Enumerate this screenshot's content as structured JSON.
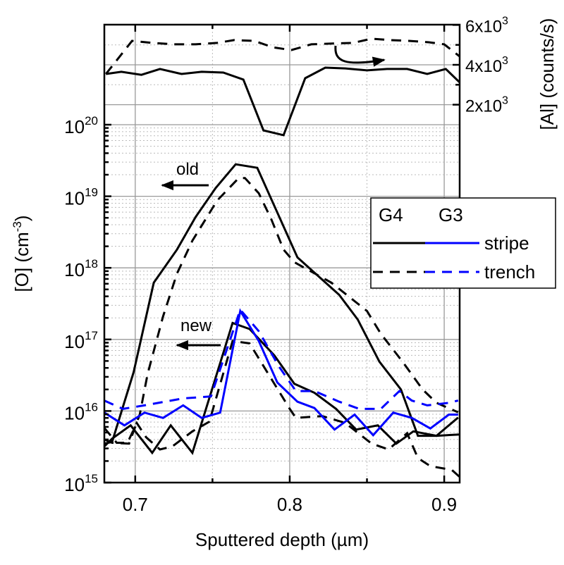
{
  "chart_data": {
    "type": "line",
    "xlabel": "Sputtered depth (µm)",
    "ylabel": {
      "main": "[O] (cm",
      "sup": "-3",
      "end": ")"
    },
    "y2label": "[Al] (counts/s)",
    "xlim": [
      0.68,
      0.91
    ],
    "ylim": [
      1000000000000000.0,
      2.5e+21
    ],
    "yscale": "log",
    "y2lim": [
      -17000,
      6000
    ],
    "grid": true,
    "x_ticks": [
      {
        "value": 0.7,
        "label": "0.7"
      },
      {
        "value": 0.8,
        "label": "0.8"
      },
      {
        "value": 0.9,
        "label": "0.9"
      }
    ],
    "y_ticks": [
      {
        "value": 1000000000000000.0,
        "base": "10",
        "exp": "15"
      },
      {
        "value": 1e+16,
        "base": "10",
        "exp": "16"
      },
      {
        "value": 1e+17,
        "base": "10",
        "exp": "17"
      },
      {
        "value": 1e+18,
        "base": "10",
        "exp": "18"
      },
      {
        "value": 1e+19,
        "base": "10",
        "exp": "19"
      },
      {
        "value": 1e+20,
        "base": "10",
        "exp": "20"
      }
    ],
    "y2_ticks": [
      {
        "value": 2000,
        "base": "2x10",
        "exp": "3"
      },
      {
        "value": 4000,
        "base": "4x10",
        "exp": "3"
      },
      {
        "value": 6000,
        "base": "6x10",
        "exp": "3"
      }
    ],
    "legend": {
      "placement": "right",
      "headers": [
        "G4",
        "G3"
      ],
      "entries": [
        {
          "label": "stripe",
          "dash": false
        },
        {
          "label": "trench",
          "dash": true
        }
      ],
      "colors": [
        "#000000",
        "#0000ff"
      ]
    },
    "annotations": [
      {
        "text": "old",
        "arrow": "left"
      },
      {
        "text": "new",
        "arrow": "left"
      }
    ],
    "series": [
      {
        "name": "O G4 stripe (old)",
        "axis": "left",
        "color": "#000000",
        "dash": false,
        "x": [
          0.68,
          0.685,
          0.699,
          0.712,
          0.727,
          0.739,
          0.752,
          0.765,
          0.779,
          0.805,
          0.832,
          0.844,
          0.858,
          0.872,
          0.883,
          0.895,
          0.91
        ],
        "y": [
          3500000000000000.0,
          3700000000000000.0,
          3.5e+16,
          6.2e+17,
          1.8e+18,
          5.1e+18,
          1.3e+19,
          2.8e+19,
          2.5e+19,
          1.4e+18,
          4.2e+17,
          1.9e+17,
          4.9e+16,
          2e+16,
          4500000000000000.0,
          4500000000000000.0,
          4700000000000000.0
        ]
      },
      {
        "name": "O G4 trench (old)",
        "axis": "left",
        "color": "#000000",
        "dash": true,
        "x": [
          0.68,
          0.685,
          0.696,
          0.703,
          0.708,
          0.718,
          0.727,
          0.737,
          0.753,
          0.767,
          0.771,
          0.78,
          0.788,
          0.796,
          0.803,
          0.827,
          0.85,
          0.859,
          0.873,
          0.886,
          0.895,
          0.909
        ],
        "y": [
          4000000000000000.0,
          3600000000000000.0,
          3500000000000000.0,
          9100000000000000.0,
          3.3e+16,
          2.1e+17,
          8.3e+17,
          2.4e+18,
          8.7e+18,
          1.8e+19,
          1.8e+19,
          1.1e+19,
          4.8e+18,
          1.8e+18,
          1.2e+18,
          6.2e+17,
          2.5e+17,
          1.2e+17,
          4.9e+16,
          2e+16,
          1.3e+16,
          9600000000000000.0
        ]
      },
      {
        "name": "O G4 stripe (new)",
        "axis": "left",
        "color": "#000000",
        "dash": false,
        "x": [
          0.68,
          0.685,
          0.697,
          0.711,
          0.723,
          0.737,
          0.763,
          0.774,
          0.79,
          0.803,
          0.816,
          0.83,
          0.843,
          0.857,
          0.869,
          0.88,
          0.895,
          0.909
        ],
        "y": [
          3200000000000000.0,
          4100000000000000.0,
          6300000000000000.0,
          2600000000000000.0,
          6300000000000000.0,
          2600000000000000.0,
          1.7e+17,
          1.4e+17,
          6e+16,
          2.4e+16,
          1.8e+16,
          1.07e+16,
          5500000000000000.0,
          6300000000000000.0,
          3500000000000000.0,
          5200000000000000.0,
          4500000000000000.0,
          8100000000000000.0
        ]
      },
      {
        "name": "O G4 trench (new)",
        "axis": "left",
        "color": "#000000",
        "dash": true,
        "x": [
          0.68,
          0.688,
          0.695,
          0.701,
          0.707,
          0.716,
          0.724,
          0.737,
          0.748,
          0.763,
          0.774,
          0.8,
          0.804,
          0.821,
          0.836,
          0.853,
          0.864,
          0.876,
          0.883,
          0.891,
          0.905,
          0.91
        ],
        "y": [
          5800000000000000.0,
          3600000000000000.0,
          3600000000000000.0,
          6800000000000000.0,
          4300000000000000.0,
          2900000000000000.0,
          3200000000000000.0,
          5200000000000000.0,
          7100000000000000.0,
          9.5e+16,
          8.8e+16,
          1.07e+16,
          8000000000000000.0,
          8500000000000000.0,
          6800000000000000.0,
          3500000000000000.0,
          2900000000000000.0,
          4900000000000000.0,
          2200000000000000.0,
          1700000000000000.0,
          1500000000000000.0,
          1200000000000000.0
        ]
      },
      {
        "name": "O G3 stripe (new)",
        "axis": "left",
        "color": "#0000ff",
        "dash": false,
        "x": [
          0.68,
          0.693,
          0.706,
          0.718,
          0.731,
          0.743,
          0.755,
          0.768,
          0.78,
          0.792,
          0.805,
          0.816,
          0.829,
          0.842,
          0.854,
          0.867,
          0.879,
          0.891,
          0.903,
          0.909
        ],
        "y": [
          9500000000000000.0,
          6300000000000000.0,
          9500000000000000.0,
          8000000000000000.0,
          1.2e+16,
          8000000000000000.0,
          9500000000000000.0,
          2.5e+17,
          9.5e+16,
          2.5e+16,
          1.35e+16,
          1.1e+16,
          5500000000000000.0,
          8900000000000000.0,
          4600000000000000.0,
          9500000000000000.0,
          8000000000000000.0,
          5700000000000000.0,
          8900000000000000.0,
          8900000000000000.0
        ]
      },
      {
        "name": "O G3 trench (new)",
        "axis": "left",
        "color": "#0000ff",
        "dash": true,
        "x": [
          0.68,
          0.692,
          0.706,
          0.731,
          0.749,
          0.768,
          0.78,
          0.793,
          0.804,
          0.816,
          0.832,
          0.845,
          0.859,
          0.871,
          0.879,
          0.889,
          0.903,
          0.909
        ],
        "y": [
          1.4e+16,
          1.07e+16,
          1.2e+16,
          1.5e+16,
          1.6e+16,
          2.6e+17,
          1.3e+17,
          4.2e+16,
          1.9e+16,
          1.9e+16,
          1.35e+16,
          1.07e+16,
          1.07e+16,
          1.9e+16,
          1.4e+16,
          1.2e+16,
          1.3e+16,
          1.4e+16
        ]
      },
      {
        "name": "Al G4 stripe",
        "axis": "right",
        "color": "#000000",
        "dash": false,
        "x": [
          0.681,
          0.691,
          0.704,
          0.716,
          0.73,
          0.743,
          0.757,
          0.77,
          0.783,
          0.796,
          0.81,
          0.823,
          0.836,
          0.85,
          0.863,
          0.876,
          0.889,
          0.901,
          0.91
        ],
        "y": [
          3540,
          3650,
          3500,
          3790,
          3540,
          3650,
          3610,
          3260,
          710,
          470,
          3330,
          3860,
          3820,
          3720,
          3790,
          3790,
          3540,
          3790,
          3120
        ]
      },
      {
        "name": "Al G4 trench",
        "axis": "right",
        "color": "#000000",
        "dash": true,
        "x": [
          0.681,
          0.698,
          0.711,
          0.725,
          0.739,
          0.753,
          0.764,
          0.777,
          0.789,
          0.801,
          0.814,
          0.828,
          0.841,
          0.853,
          0.865,
          0.877,
          0.89,
          0.9,
          0.91
        ],
        "y": [
          3540,
          5200,
          5100,
          5030,
          5030,
          5100,
          5240,
          5200,
          4880,
          4740,
          5030,
          5070,
          5100,
          5310,
          5240,
          5200,
          5130,
          5030,
          4420
        ]
      }
    ]
  }
}
